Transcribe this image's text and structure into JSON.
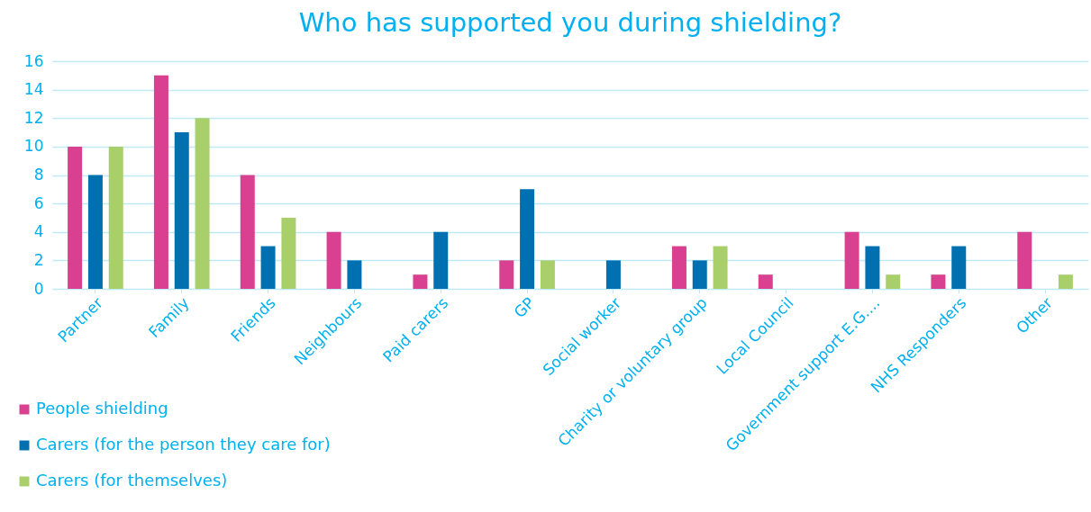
{
  "chart_data": {
    "type": "bar",
    "title": "Who has supported you during shielding?",
    "categories": [
      "Partner",
      "Family",
      "Friends",
      "Neighbours",
      "Paid carers",
      "GP",
      "Social worker",
      "Charity or voluntary group",
      "Local Council",
      "Government support E.G....",
      "NHS Responders",
      "Other"
    ],
    "series": [
      {
        "name": "People shielding",
        "color": "#d9408f",
        "values": [
          10,
          15,
          8,
          4,
          1,
          2,
          0,
          3,
          1,
          4,
          1,
          4
        ]
      },
      {
        "name": "Carers (for the person they care for)",
        "color": "#0070b0",
        "values": [
          8,
          11,
          3,
          2,
          4,
          7,
          2,
          2,
          0,
          3,
          3,
          0
        ]
      },
      {
        "name": "Carers (for themselves)",
        "color": "#a9cf6a",
        "values": [
          10,
          12,
          5,
          0,
          0,
          2,
          0,
          3,
          0,
          1,
          0,
          1
        ]
      }
    ],
    "ylim": [
      0,
      16
    ],
    "yticks": [
      0,
      2,
      4,
      6,
      8,
      10,
      12,
      14,
      16
    ],
    "grid": "y",
    "legend": "bottom left"
  }
}
